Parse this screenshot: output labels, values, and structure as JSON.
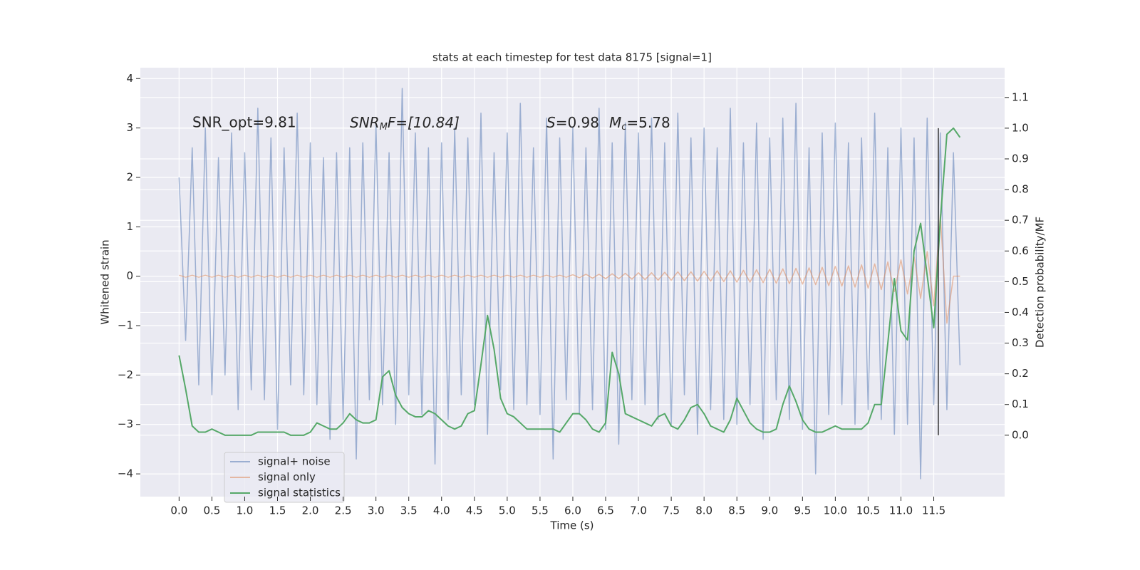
{
  "chart_data": {
    "type": "line",
    "title": "stats at each timestep for test data 8175 [signal=1]",
    "x_label": "Time (s)",
    "y_label": "Whitened strain",
    "y2_label": "Detection probability/MF",
    "annotations": [
      {
        "text": "SNR_opt=9.81"
      },
      {
        "parts": [
          "SNR",
          "M",
          "F=[10.84]"
        ]
      },
      {
        "parts": [
          "S",
          "=0.98",
          "M",
          "c",
          "=5.78"
        ]
      }
    ],
    "x": [
      0,
      0.1,
      0.2,
      0.3,
      0.4,
      0.5,
      0.6,
      0.7,
      0.8,
      0.9,
      1,
      1.1,
      1.2,
      1.3,
      1.4,
      1.5,
      1.6,
      1.7,
      1.8,
      1.9,
      2,
      2.1,
      2.2,
      2.3,
      2.4,
      2.5,
      2.6,
      2.7,
      2.8,
      2.9,
      3,
      3.1,
      3.2,
      3.3,
      3.4,
      3.5,
      3.6,
      3.7,
      3.8,
      3.9,
      4,
      4.1,
      4.2,
      4.3,
      4.4,
      4.5,
      4.6,
      4.7,
      4.8,
      4.9,
      5,
      5.1,
      5.2,
      5.3,
      5.4,
      5.5,
      5.6,
      5.7,
      5.8,
      5.9,
      6,
      6.1,
      6.2,
      6.3,
      6.4,
      6.5,
      6.6,
      6.7,
      6.8,
      6.9,
      7,
      7.1,
      7.2,
      7.3,
      7.4,
      7.5,
      7.6,
      7.7,
      7.8,
      7.9,
      8,
      8.1,
      8.2,
      8.3,
      8.4,
      8.5,
      8.6,
      8.7,
      8.8,
      8.9,
      9,
      9.1,
      9.2,
      9.3,
      9.4,
      9.5,
      9.6,
      9.7,
      9.8,
      9.9,
      10,
      10.1,
      10.2,
      10.3,
      10.4,
      10.5,
      10.6,
      10.7,
      10.8,
      10.9,
      11,
      11.1,
      11.2,
      11.3,
      11.4,
      11.5,
      11.6,
      11.7,
      11.8,
      11.9
    ],
    "series": [
      {
        "name": "signal+ noise",
        "color": "#4c72b0",
        "alpha": 0.5,
        "values": [
          2.0,
          -1.3,
          2.6,
          -2.2,
          3.0,
          -2.4,
          2.4,
          -2.0,
          2.9,
          -2.7,
          2.5,
          -2.3,
          3.4,
          -2.5,
          2.8,
          -3.1,
          2.6,
          -2.2,
          3.3,
          -2.4,
          2.7,
          -2.6,
          2.4,
          -3.3,
          2.5,
          -2.9,
          2.6,
          -3.7,
          2.7,
          -2.5,
          3.1,
          -2.6,
          2.5,
          -3.0,
          3.8,
          -2.4,
          2.9,
          -2.8,
          2.6,
          -3.8,
          2.7,
          -2.9,
          3.0,
          -2.4,
          2.8,
          -2.6,
          3.3,
          -3.2,
          2.5,
          -2.3,
          2.9,
          -2.7,
          3.5,
          -2.6,
          2.6,
          -2.8,
          3.2,
          -3.7,
          2.8,
          -2.5,
          3.0,
          -2.8,
          2.6,
          -2.7,
          3.4,
          -3.1,
          2.7,
          -3.4,
          3.1,
          -2.5,
          2.9,
          -2.6,
          3.2,
          -2.9,
          2.7,
          -3.0,
          3.3,
          -2.4,
          2.8,
          -3.2,
          3.0,
          -2.7,
          2.6,
          -2.9,
          3.4,
          -3.0,
          2.7,
          -2.6,
          3.1,
          -3.3,
          2.8,
          -2.5,
          3.2,
          -2.9,
          3.5,
          -3.1,
          2.6,
          -4.0,
          2.9,
          -2.8,
          3.1,
          -2.6,
          2.7,
          -3.0,
          2.8,
          -2.7,
          3.3,
          -2.9,
          2.6,
          -3.2,
          3.0,
          -3.0,
          2.8,
          -4.1,
          3.2,
          -2.6,
          2.9,
          -2.7,
          2.5,
          -1.8
        ]
      },
      {
        "name": "signal only",
        "color": "#dd8452",
        "alpha": 0.5,
        "values": [
          0.02,
          -0.02,
          0.02,
          -0.02,
          0.02,
          -0.02,
          0.02,
          -0.02,
          0.02,
          -0.02,
          0.02,
          -0.02,
          0.02,
          -0.02,
          0.02,
          -0.02,
          0.02,
          -0.02,
          0.02,
          -0.02,
          0.02,
          -0.02,
          0.02,
          -0.02,
          0.02,
          -0.02,
          0.02,
          -0.02,
          0.02,
          -0.02,
          0.02,
          -0.02,
          0.02,
          -0.02,
          0.02,
          -0.02,
          0.02,
          -0.02,
          0.02,
          -0.02,
          0.02,
          -0.02,
          0.02,
          -0.02,
          0.02,
          -0.02,
          0.02,
          -0.02,
          0.02,
          -0.02,
          0.02,
          -0.02,
          0.02,
          -0.02,
          0.02,
          -0.02,
          0.02,
          -0.02,
          0.02,
          -0.02,
          0.03,
          -0.03,
          0.04,
          -0.04,
          0.04,
          -0.05,
          0.05,
          -0.05,
          0.06,
          -0.06,
          0.07,
          -0.07,
          0.07,
          -0.08,
          0.08,
          -0.08,
          0.09,
          -0.09,
          0.09,
          -0.1,
          0.1,
          -0.1,
          0.11,
          -0.11,
          0.11,
          -0.12,
          0.12,
          -0.12,
          0.13,
          -0.13,
          0.14,
          -0.14,
          0.15,
          -0.15,
          0.16,
          -0.16,
          0.17,
          -0.17,
          0.18,
          -0.19,
          0.2,
          -0.2,
          0.21,
          -0.22,
          0.23,
          -0.24,
          0.25,
          -0.27,
          0.29,
          -0.31,
          0.33,
          -0.36,
          0.4,
          -0.45,
          0.5,
          -0.6,
          1.25,
          -0.95,
          0,
          0
        ]
      },
      {
        "name": "signal statistics",
        "color": "#55a868",
        "axis": "y2",
        "values": [
          0.26,
          0.15,
          0.03,
          0.01,
          0.01,
          0.02,
          0.01,
          0.0,
          0.0,
          0.0,
          0.0,
          0.0,
          0.01,
          0.01,
          0.01,
          0.01,
          0.01,
          0.0,
          0.0,
          0.0,
          0.01,
          0.04,
          0.03,
          0.02,
          0.02,
          0.04,
          0.07,
          0.05,
          0.04,
          0.04,
          0.05,
          0.19,
          0.21,
          0.13,
          0.09,
          0.07,
          0.06,
          0.06,
          0.08,
          0.07,
          0.05,
          0.03,
          0.02,
          0.03,
          0.07,
          0.08,
          0.23,
          0.39,
          0.28,
          0.12,
          0.07,
          0.06,
          0.04,
          0.02,
          0.02,
          0.02,
          0.02,
          0.02,
          0.01,
          0.04,
          0.07,
          0.07,
          0.05,
          0.02,
          0.01,
          0.04,
          0.27,
          0.2,
          0.07,
          0.06,
          0.05,
          0.04,
          0.03,
          0.06,
          0.07,
          0.03,
          0.02,
          0.05,
          0.09,
          0.1,
          0.07,
          0.03,
          0.02,
          0.01,
          0.05,
          0.12,
          0.08,
          0.04,
          0.02,
          0.01,
          0.01,
          0.02,
          0.1,
          0.16,
          0.11,
          0.05,
          0.02,
          0.01,
          0.01,
          0.02,
          0.03,
          0.02,
          0.02,
          0.02,
          0.02,
          0.04,
          0.1,
          0.1,
          0.3,
          0.51,
          0.34,
          0.31,
          0.6,
          0.69,
          0.52,
          0.35,
          0.7,
          0.98,
          1.0,
          0.97
        ]
      }
    ],
    "vline": {
      "x": 11.57,
      "y": [
        0,
        1
      ],
      "color": "#333333",
      "axis": "y2"
    },
    "xlim": [
      -0.59,
      12.58
    ],
    "ylim": [
      -4.46,
      4.22
    ],
    "y2lim": [
      -0.2,
      1.197
    ],
    "xticks": [
      {
        "value": 0,
        "label": "0.0"
      },
      0.5,
      {
        "value": 1,
        "label": "1.0"
      },
      1.5,
      {
        "value": 2,
        "label": "2.0"
      },
      2.5,
      {
        "value": 3,
        "label": "3.0"
      },
      3.5,
      {
        "value": 4,
        "label": "4.0"
      },
      4.5,
      {
        "value": 5,
        "label": "5.0"
      },
      5.5,
      {
        "value": 6,
        "label": "6.0"
      },
      6.5,
      {
        "value": 7,
        "label": "7.0"
      },
      7.5,
      {
        "value": 8,
        "label": "8.0"
      },
      8.5,
      {
        "value": 9,
        "label": "9.0"
      },
      9.5,
      {
        "value": 10,
        "label": "10.0"
      },
      10.5,
      {
        "value": 11,
        "label": "11.0"
      },
      11.5
    ],
    "yticks": [
      {
        "value": -4,
        "label": "−4"
      },
      {
        "value": -3,
        "label": "−3"
      },
      {
        "value": -2,
        "label": "−2"
      },
      {
        "value": -1,
        "label": "−1"
      },
      0,
      1,
      2,
      3,
      4
    ],
    "y2ticks": [
      {
        "value": 0,
        "label": "0.0"
      },
      0.1,
      0.2,
      0.3,
      0.4,
      0.5,
      0.6,
      0.7,
      0.8,
      0.9,
      {
        "value": 1,
        "label": "1.0"
      },
      1.1
    ],
    "grid": true,
    "legend": "lower left"
  }
}
